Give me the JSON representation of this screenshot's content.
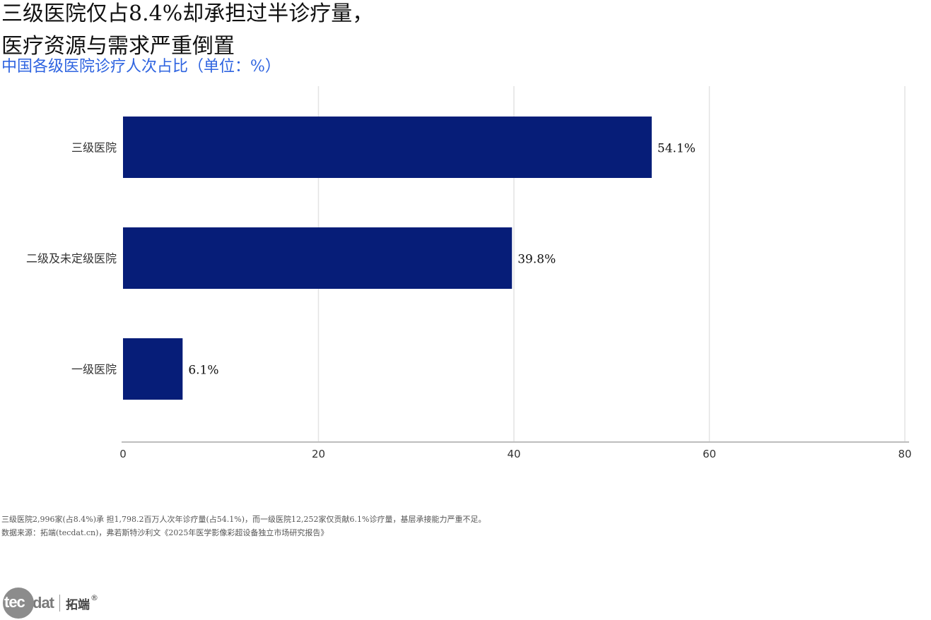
{
  "title": {
    "line1": "三级医院仅占8.4%却承担过半诊疗量，",
    "line2": "医疗资源与需求严重倒置"
  },
  "subtitle": "中国各级医院诊疗人次占比（单位：%）",
  "chart_data": {
    "type": "bar",
    "orientation": "horizontal",
    "title": "中国各级医院诊疗人次占比（单位：%）",
    "categories": [
      "三级医院",
      "二级及未定级医院",
      "一级医院"
    ],
    "values": [
      54.1,
      39.8,
      6.1
    ],
    "value_labels": [
      "54.1%",
      "39.8%",
      "6.1%"
    ],
    "xlim": [
      0,
      80
    ],
    "xticks": [
      "0",
      "20",
      "40",
      "60",
      "80"
    ],
    "xtick_values": [
      0,
      20,
      40,
      60,
      80
    ],
    "xlabel": "",
    "ylabel": "",
    "grid": "vertical",
    "legend": "none",
    "bar_color": "#061d78",
    "grid_color": "#e3e3e3",
    "axis_color": "#bdbdbd"
  },
  "footnotes": {
    "note": "三级医院2,996家(占8.4%)承 担1,798.2百万人次年诊疗量(占54.1%)，而一级医院12,252家仅贡献6.1%诊疗量，基层承接能力严重不足。",
    "source": "数据来源：拓端(tecdat.cn)，弗若斯特沙利文《2025年医学影像彩超设备独立市场研究报告》"
  },
  "logo": {
    "part1": "tec",
    "part2": "dat",
    "chinese": "拓端",
    "mark": "®"
  }
}
